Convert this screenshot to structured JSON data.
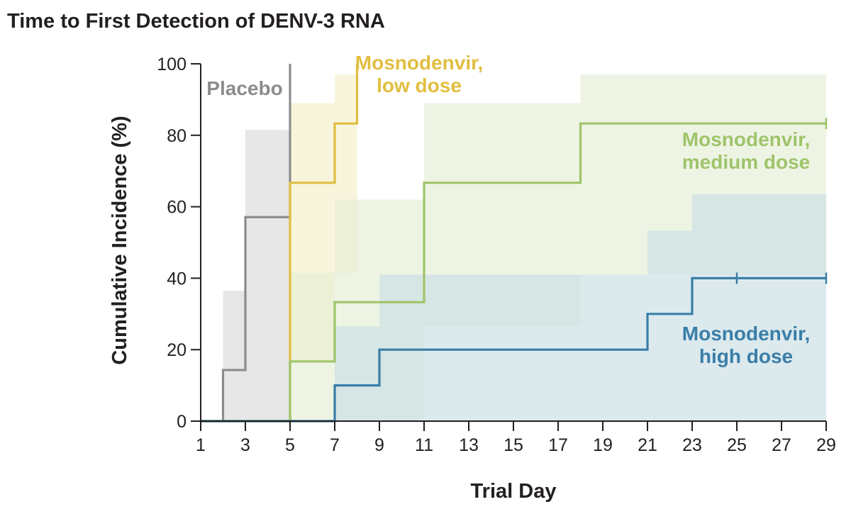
{
  "chart_data": {
    "type": "line",
    "subtype": "step",
    "title": "Time to First Detection of DENV-3 RNA",
    "xlabel": "Trial Day",
    "ylabel": "Cumulative Incidence (%)",
    "xlim": [
      1,
      29
    ],
    "ylim": [
      0,
      100
    ],
    "xticks": [
      1,
      3,
      5,
      7,
      9,
      11,
      13,
      15,
      17,
      19,
      21,
      23,
      25,
      27,
      29
    ],
    "yticks": [
      0,
      20,
      40,
      60,
      80,
      100
    ],
    "series": [
      {
        "name": "Placebo",
        "label_lines": [
          "Placebo"
        ],
        "color": "#8c8c8e",
        "fill_color": "#d9d9da",
        "x": [
          1,
          2,
          3,
          5
        ],
        "y": [
          0,
          14.3,
          57.1,
          100
        ],
        "ci_lower": [
          0,
          0,
          0,
          0
        ],
        "ci_upper": [
          0,
          36.5,
          81.5,
          100
        ],
        "censored_x": []
      },
      {
        "name": "Mosnodenvir, low dose",
        "label_lines": [
          "Mosnodenvir,",
          "low dose"
        ],
        "color": "#e1be40",
        "fill_color": "#f6edc6",
        "x": [
          1,
          5,
          7,
          8
        ],
        "y": [
          0,
          66.7,
          83.3,
          100
        ],
        "ci_lower": [
          0,
          17.2,
          41.5,
          0
        ],
        "ci_upper": [
          0,
          89,
          97,
          100
        ],
        "censored_x": []
      },
      {
        "name": "Mosnodenvir, medium dose",
        "label_lines": [
          "Mosnodenvir,",
          "medium dose"
        ],
        "color": "#9fc46a",
        "fill_color": "#e3eed3",
        "x": [
          1,
          5,
          7,
          11,
          18,
          29
        ],
        "y": [
          0,
          16.7,
          33.3,
          66.7,
          83.3,
          83.3
        ],
        "ci_lower": [
          0,
          0,
          0,
          26.5,
          41,
          41
        ],
        "ci_upper": [
          0,
          41.5,
          62,
          89,
          97,
          97
        ],
        "censored_x": [
          29
        ]
      },
      {
        "name": "Mosnodenvir, high dose",
        "label_lines": [
          "Mosnodenvir,",
          "high dose"
        ],
        "color": "#3a7ea8",
        "fill_color": "#c6dde3",
        "x": [
          1,
          7,
          9,
          21,
          23,
          29
        ],
        "y": [
          0,
          10,
          20,
          30,
          40,
          40
        ],
        "ci_lower": [
          0,
          0,
          0,
          0,
          0,
          0
        ],
        "ci_upper": [
          0,
          26.5,
          41,
          53.3,
          63.5,
          63.5
        ],
        "censored_x": [
          25,
          29
        ]
      }
    ]
  }
}
